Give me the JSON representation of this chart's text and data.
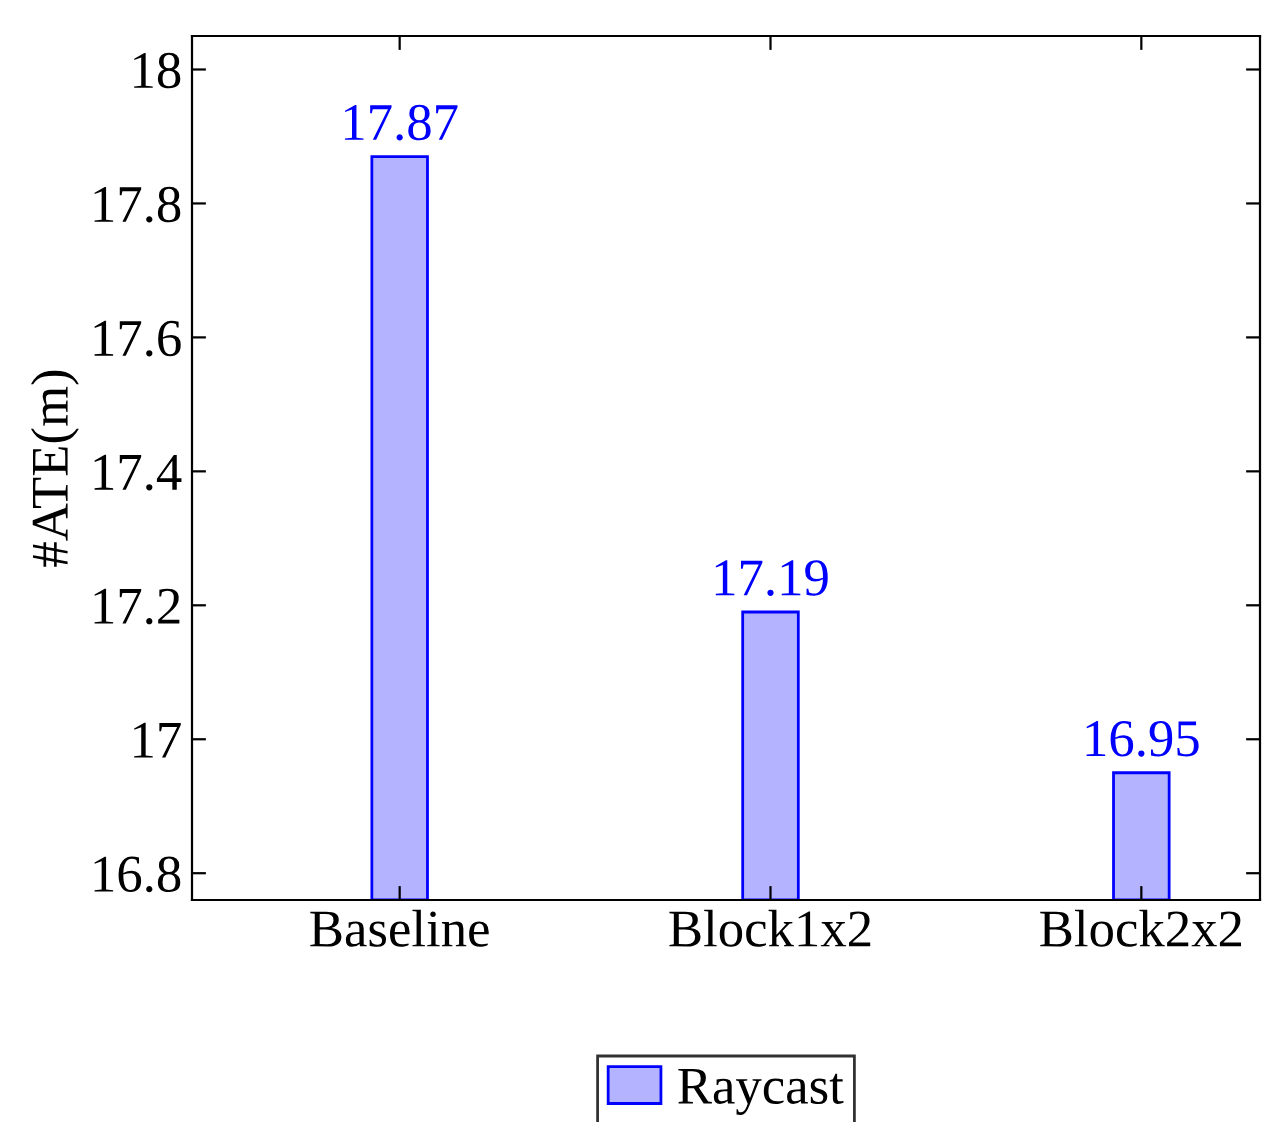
{
  "chart_data": {
    "type": "bar",
    "ylabel": "#ATE(m)",
    "categories": [
      "Baseline",
      "Block1x2",
      "Block2x2"
    ],
    "series": [
      {
        "name": "Raycast",
        "color": "#b3b3ff",
        "values": [
          17.87,
          17.19,
          16.95
        ]
      }
    ],
    "ylim": [
      16.76,
      18.05
    ],
    "yticks": [
      16.8,
      17,
      17.2,
      17.4,
      17.6,
      17.8,
      18
    ],
    "data_labels": true,
    "legend": "bottom",
    "grid": false
  }
}
